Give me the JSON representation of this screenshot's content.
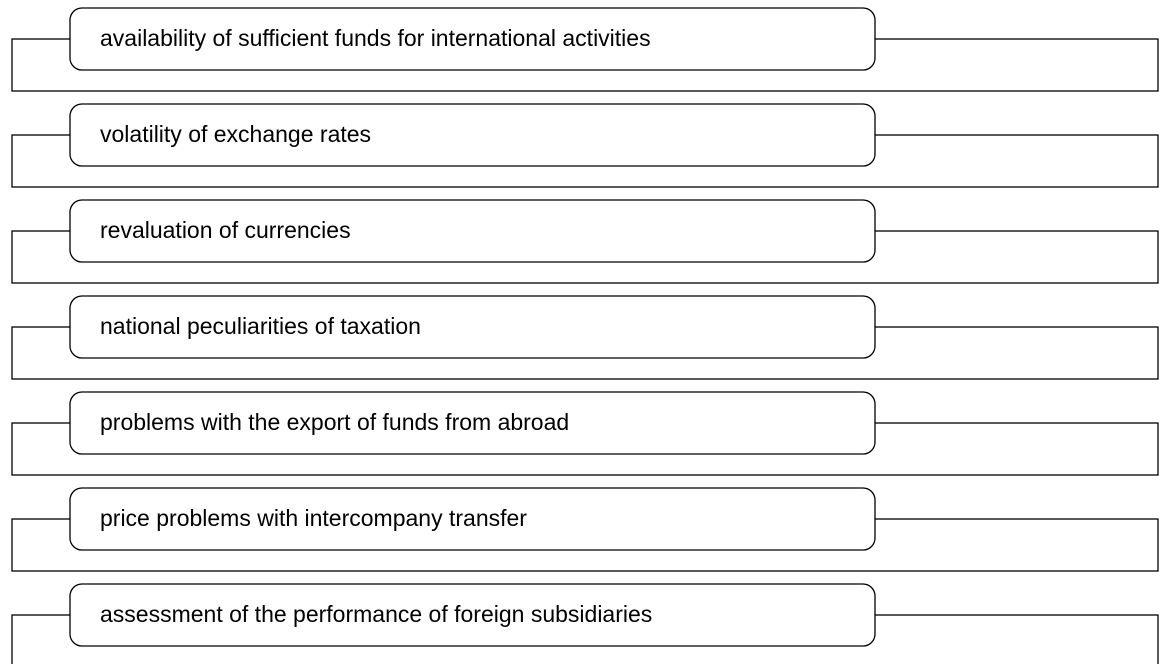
{
  "items": [
    "availability of sufficient funds for international activities",
    "volatility of exchange rates",
    "revaluation of currencies",
    "national peculiarities of taxation",
    "problems with the export of funds from abroad",
    "price problems with intercompany transfer",
    "assessment of the performance of foreign subsidiaries"
  ]
}
